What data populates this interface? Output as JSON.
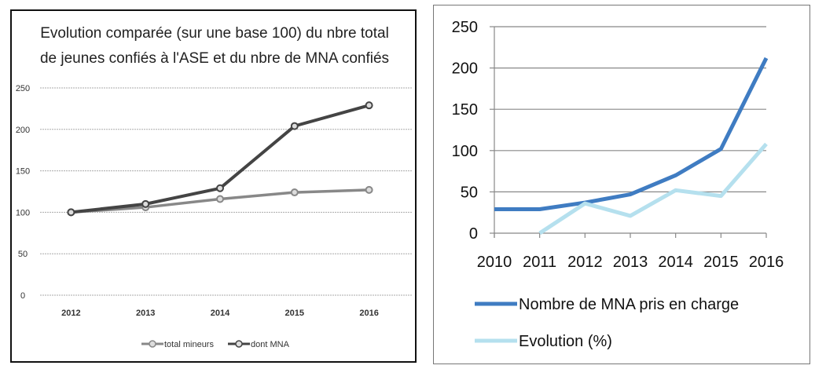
{
  "chart_data": [
    {
      "type": "line",
      "title": "Evolution comparée (sur une base 100) du nbre total de jeunes confiés à l'ASE et du nbre de MNA confiés",
      "title_lines": [
        "Evolution comparée (sur une base 100) du nbre total",
        "de jeunes confiés à l'ASE et du nbre de MNA confiés"
      ],
      "categories": [
        "2012",
        "2013",
        "2014",
        "2015",
        "2016"
      ],
      "ylim": [
        0,
        250
      ],
      "yticks": [
        "0",
        "50",
        "100",
        "150",
        "200",
        "250"
      ],
      "grid": true,
      "legend": "bottom",
      "series": [
        {
          "name": "total mineurs",
          "values": [
            100,
            106,
            116,
            124,
            127
          ],
          "color": "#888888"
        },
        {
          "name": "dont MNA",
          "values": [
            100,
            110,
            129,
            204,
            229
          ],
          "color": "#444444"
        }
      ]
    },
    {
      "type": "line",
      "title": "",
      "categories": [
        "2010",
        "2011",
        "2012",
        "2013",
        "2014",
        "2015",
        "2016"
      ],
      "ylim": [
        0,
        250
      ],
      "yticks": [
        "0",
        "50",
        "100",
        "150",
        "200",
        "250"
      ],
      "grid": true,
      "legend": "bottom",
      "series": [
        {
          "name": "Nombre de MNA pris en charge",
          "values": [
            29,
            29,
            37,
            47,
            70,
            102,
            212
          ],
          "color": "#3f7cc2"
        },
        {
          "name": "Evolution (%)",
          "values": [
            null,
            0,
            36,
            21,
            52,
            45,
            108
          ],
          "color": "#b5e0ee"
        }
      ]
    }
  ]
}
